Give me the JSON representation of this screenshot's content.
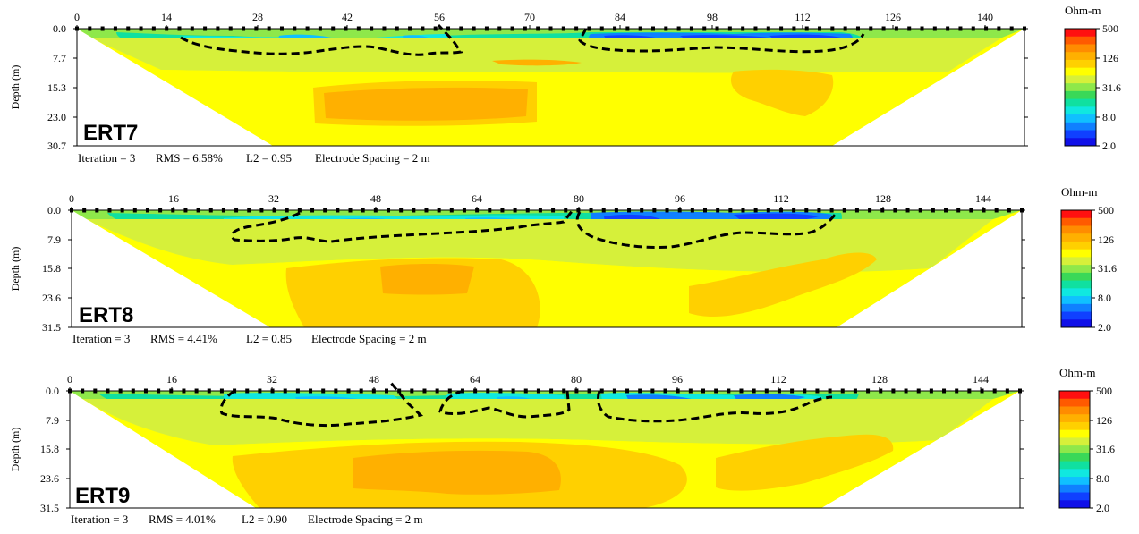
{
  "panels": [
    {
      "name": "ERT7",
      "x_ticks": [
        "0",
        "14",
        "28",
        "42",
        "56",
        "70",
        "84",
        "98",
        "112",
        "126",
        "140"
      ],
      "y_ticks": [
        "0.0",
        "7.7",
        "15.3",
        "23.0",
        "30.7"
      ],
      "ylabel": "Depth (m)",
      "footer": {
        "iteration": "Iteration = 3",
        "rms": "RMS = 6.58%",
        "l2": "L2 = 0.95",
        "spacing": "Electrode Spacing = 2 m"
      },
      "colorbar": {
        "unit": "Ohm-m",
        "ticks": [
          "500",
          "126",
          "31.6",
          "8.0",
          "2.0"
        ]
      }
    },
    {
      "name": "ERT8",
      "x_ticks": [
        "0",
        "16",
        "32",
        "48",
        "64",
        "80",
        "96",
        "112",
        "128",
        "144"
      ],
      "y_ticks": [
        "0.0",
        "7.9",
        "15.8",
        "23.6",
        "31.5"
      ],
      "ylabel": "Depth (m)",
      "footer": {
        "iteration": "Iteration = 3",
        "rms": "RMS = 4.41%",
        "l2": "L2 = 0.85",
        "spacing": "Electrode Spacing = 2 m"
      },
      "colorbar": {
        "unit": "Ohm-m",
        "ticks": [
          "500",
          "126",
          "31.6",
          "8.0",
          "2.0"
        ]
      }
    },
    {
      "name": "ERT9",
      "x_ticks": [
        "0",
        "16",
        "32",
        "48",
        "64",
        "80",
        "96",
        "112",
        "128",
        "144"
      ],
      "y_ticks": [
        "0.0",
        "7.9",
        "15.8",
        "23.6",
        "31.5"
      ],
      "ylabel": "Depth (m)",
      "footer": {
        "iteration": "Iteration = 3",
        "rms": "RMS = 4.01%",
        "l2": "L2 = 0.90",
        "spacing": "Electrode Spacing = 2 m"
      },
      "colorbar": {
        "unit": "Ohm-m",
        "ticks": [
          "500",
          "126",
          "31.6",
          "8.0",
          "2.0"
        ]
      }
    }
  ],
  "chart_data": [
    {
      "type": "heatmap",
      "title": "ERT7",
      "xlabel": "",
      "ylabel": "Depth (m)",
      "xlim": [
        0,
        148
      ],
      "ylim": [
        30.7,
        0.0
      ],
      "colorbar_label": "Ohm-m",
      "colorbar_range": [
        2.0,
        500
      ],
      "colorbar_scale": "log",
      "iteration": 3,
      "rms_percent": 6.58,
      "l2": 0.95,
      "electrode_spacing_m": 2
    },
    {
      "type": "heatmap",
      "title": "ERT8",
      "xlabel": "",
      "ylabel": "Depth (m)",
      "xlim": [
        0,
        150
      ],
      "ylim": [
        31.5,
        0.0
      ],
      "colorbar_label": "Ohm-m",
      "colorbar_range": [
        2.0,
        500
      ],
      "colorbar_scale": "log",
      "iteration": 3,
      "rms_percent": 4.41,
      "l2": 0.85,
      "electrode_spacing_m": 2
    },
    {
      "type": "heatmap",
      "title": "ERT9",
      "xlabel": "",
      "ylabel": "Depth (m)",
      "xlim": [
        0,
        150
      ],
      "ylim": [
        31.5,
        0.0
      ],
      "colorbar_label": "Ohm-m",
      "colorbar_range": [
        2.0,
        500
      ],
      "colorbar_scale": "log",
      "iteration": 3,
      "rms_percent": 4.01,
      "l2": 0.9,
      "electrode_spacing_m": 2
    }
  ],
  "colors": {
    "resistivity_scale": [
      "#ff1010",
      "#ff5a00",
      "#ff8c00",
      "#ffb000",
      "#ffd000",
      "#ffff00",
      "#d6f03a",
      "#8ee84a",
      "#3ad858",
      "#10e0a0",
      "#10e8e0",
      "#10c0ff",
      "#1080ff",
      "#1040ff",
      "#1010e8"
    ],
    "outline": "#000000"
  }
}
